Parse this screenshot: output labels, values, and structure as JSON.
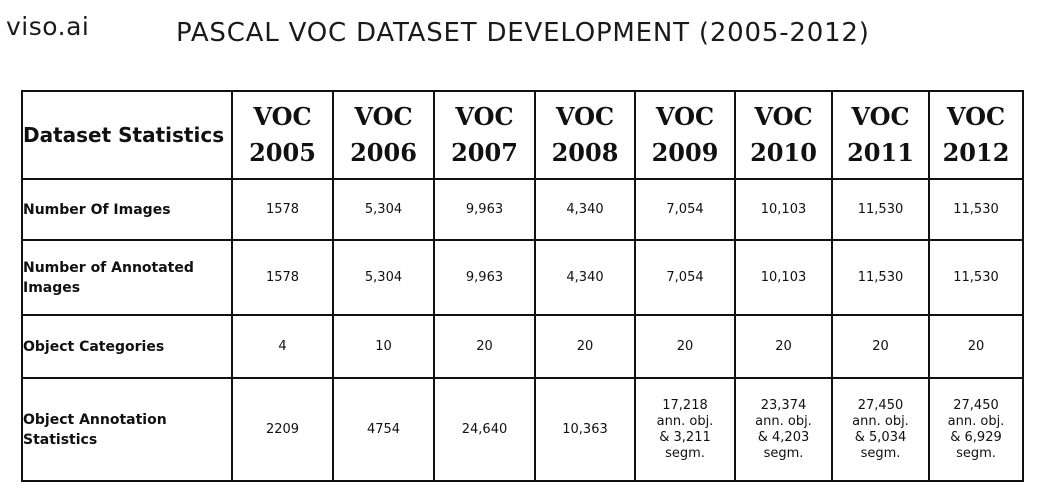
{
  "logo": "viso.ai",
  "title": "PASCAL VOC DATASET DEVELOPMENT (2005-2012)",
  "table": {
    "corner_header": "Dataset Statistics",
    "columns": [
      {
        "line1": "VOC",
        "line2": "2005"
      },
      {
        "line1": "VOC",
        "line2": "2006"
      },
      {
        "line1": "VOC",
        "line2": "2007"
      },
      {
        "line1": "VOC",
        "line2": "2008"
      },
      {
        "line1": "VOC",
        "line2": "2009"
      },
      {
        "line1": "VOC",
        "line2": "2010"
      },
      {
        "line1": "VOC",
        "line2": "2011"
      },
      {
        "line1": "VOC",
        "line2": "2012"
      }
    ],
    "rows": [
      {
        "label": "Number Of Images",
        "values": [
          "1578",
          "5,304",
          "9,963",
          "4,340",
          "7,054",
          "10,103",
          "11,530",
          "11,530"
        ]
      },
      {
        "label": "Number of Annotated Images",
        "values": [
          "1578",
          "5,304",
          "9,963",
          "4,340",
          "7,054",
          "10,103",
          "11,530",
          "11,530"
        ]
      },
      {
        "label": "Object Categories",
        "values": [
          "4",
          "10",
          "20",
          "20",
          "20",
          "20",
          "20",
          "20"
        ]
      },
      {
        "label": "Object Annotation Statistics",
        "values": [
          "2209",
          "4754",
          "24,640",
          "10,363"
        ],
        "multi_values": [
          [
            "17,218",
            "ann. obj.",
            "& 3,211",
            "segm."
          ],
          [
            "23,374",
            "ann. obj.",
            "& 4,203",
            "segm."
          ],
          [
            "27,450",
            "ann. obj.",
            "& 5,034",
            "segm."
          ],
          [
            "27,450",
            "ann. obj.",
            "& 6,929",
            "segm."
          ]
        ]
      }
    ]
  }
}
